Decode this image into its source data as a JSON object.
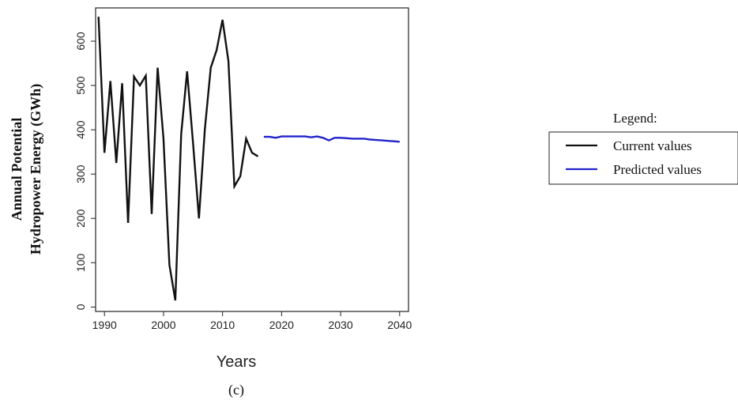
{
  "chart_data": {
    "type": "line",
    "xlabel": "Years",
    "ylabel_lines": [
      "Annual Potential",
      "Hydropower Energy (GWh)"
    ],
    "caption": "(c)",
    "xlim": [
      1988.5,
      2041.5
    ],
    "ylim": [
      -10,
      675
    ],
    "xticks": [
      1990,
      2000,
      2010,
      2020,
      2030,
      2040
    ],
    "yticks": [
      0,
      100,
      200,
      300,
      400,
      500,
      600
    ],
    "grid": false,
    "legend": {
      "title": "Legend:",
      "placement": "right",
      "entries": [
        {
          "label": "Current values",
          "color": "#111111"
        },
        {
          "label": "Predicted values",
          "color": "#2222cc"
        }
      ]
    },
    "series": [
      {
        "name": "Current values",
        "color": "#111111",
        "x": [
          1989,
          1990,
          1991,
          1992,
          1993,
          1994,
          1995,
          1996,
          1997,
          1998,
          1999,
          2000,
          2001,
          2002,
          2003,
          2004,
          2005,
          2006,
          2007,
          2008,
          2009,
          2010,
          2011,
          2012,
          2013,
          2014,
          2015,
          2016
        ],
        "y": [
          655,
          348,
          510,
          325,
          505,
          190,
          520,
          500,
          522,
          210,
          540,
          380,
          95,
          15,
          390,
          532,
          370,
          200,
          400,
          540,
          580,
          648,
          555,
          272,
          295,
          380,
          348,
          340
        ]
      },
      {
        "name": "Predicted values",
        "color": "#2222cc",
        "x": [
          2017,
          2018,
          2019,
          2020,
          2021,
          2022,
          2023,
          2024,
          2025,
          2026,
          2027,
          2028,
          2029,
          2030,
          2031,
          2032,
          2033,
          2034,
          2035,
          2036,
          2037,
          2038,
          2039,
          2040
        ],
        "y": [
          384,
          384,
          382,
          385,
          385,
          385,
          385,
          385,
          383,
          385,
          382,
          376,
          382,
          382,
          381,
          380,
          380,
          380,
          378,
          377,
          376,
          375,
          374,
          373
        ]
      }
    ]
  }
}
